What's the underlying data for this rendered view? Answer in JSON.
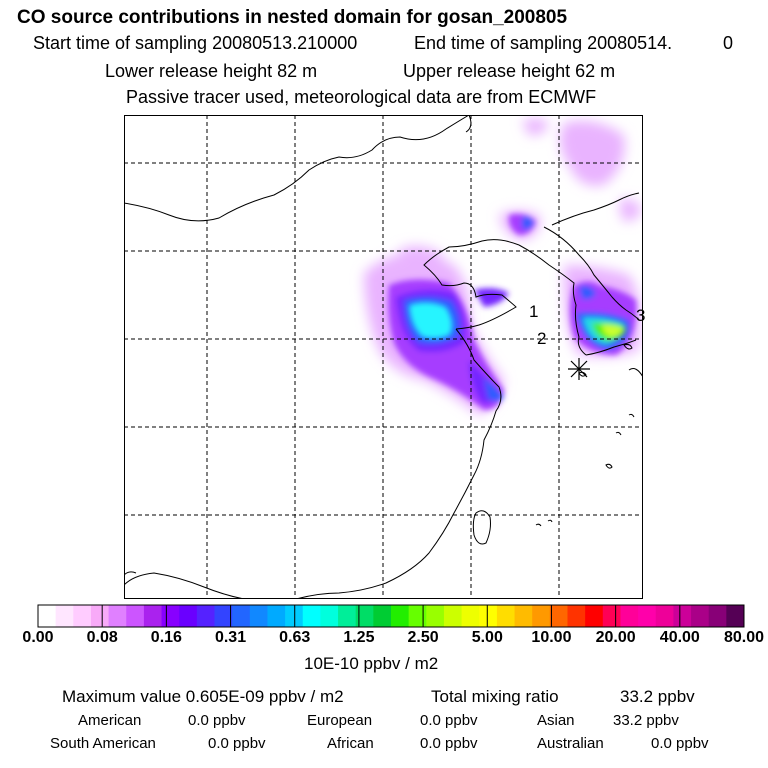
{
  "header": {
    "title": "CO  source contributions in nested domain for gosan_200805",
    "start_label": "Start time of sampling 20080513.210000",
    "end_label": "End time of sampling 20080514.",
    "end_value": "0",
    "lower_label": "Lower release height   82 m",
    "upper_label": "Upper release height   62 m",
    "tracer_line": "Passive tracer used, meteorological data are from ECMWF"
  },
  "map": {
    "markers": [
      "1",
      "2",
      "3"
    ]
  },
  "colorbar": {
    "ticks": [
      "0.00",
      "0.08",
      "0.16",
      "0.31",
      "0.63",
      "1.25",
      "2.50",
      "5.00",
      "10.00",
      "20.00",
      "40.00",
      "80.00"
    ],
    "unit": "10E-10 ppbv / m2",
    "colors": [
      "#ffffff",
      "#ffe6ff",
      "#ffccff",
      "#f8aaf8",
      "#e080ff",
      "#cc55ff",
      "#aa22ee",
      "#8800ff",
      "#6a00ff",
      "#5522ff",
      "#3344ff",
      "#2266ff",
      "#1188ff",
      "#00aaff",
      "#00ccff",
      "#00ffff",
      "#00ffdd",
      "#00ee99",
      "#00dd66",
      "#00cc33",
      "#22ee00",
      "#66ff00",
      "#99ff00",
      "#ccff00",
      "#eeff00",
      "#ffff00",
      "#ffdd00",
      "#ffbb00",
      "#ff9900",
      "#ff6600",
      "#ff3300",
      "#ff0000",
      "#ff0055",
      "#ff0099",
      "#ff00aa",
      "#ee0099",
      "#cc0099",
      "#aa0088",
      "#880077",
      "#550055"
    ]
  },
  "stats": {
    "max_label": "Maximum value  0.605E-09 ppbv / m2",
    "total_label": "Total mixing ratio",
    "total_value": "33.2 ppbv",
    "regions": [
      {
        "name": "American",
        "value": "0.0 ppbv"
      },
      {
        "name": "European",
        "value": "0.0 ppbv"
      },
      {
        "name": "Asian",
        "value": "33.2 ppbv"
      },
      {
        "name": "South American",
        "value": "0.0 ppbv"
      },
      {
        "name": "African",
        "value": "0.0 ppbv"
      },
      {
        "name": "Australian",
        "value": "0.0 ppbv"
      }
    ]
  },
  "plume_colors": {
    "light": "#e9b3ff",
    "purple": "#a63cff",
    "violet": "#7428ff",
    "blue": "#2f5cff",
    "cyan": "#28f5ff",
    "aqua": "#20d8e8",
    "green": "#4cf000",
    "yellow": "#ccff33"
  }
}
